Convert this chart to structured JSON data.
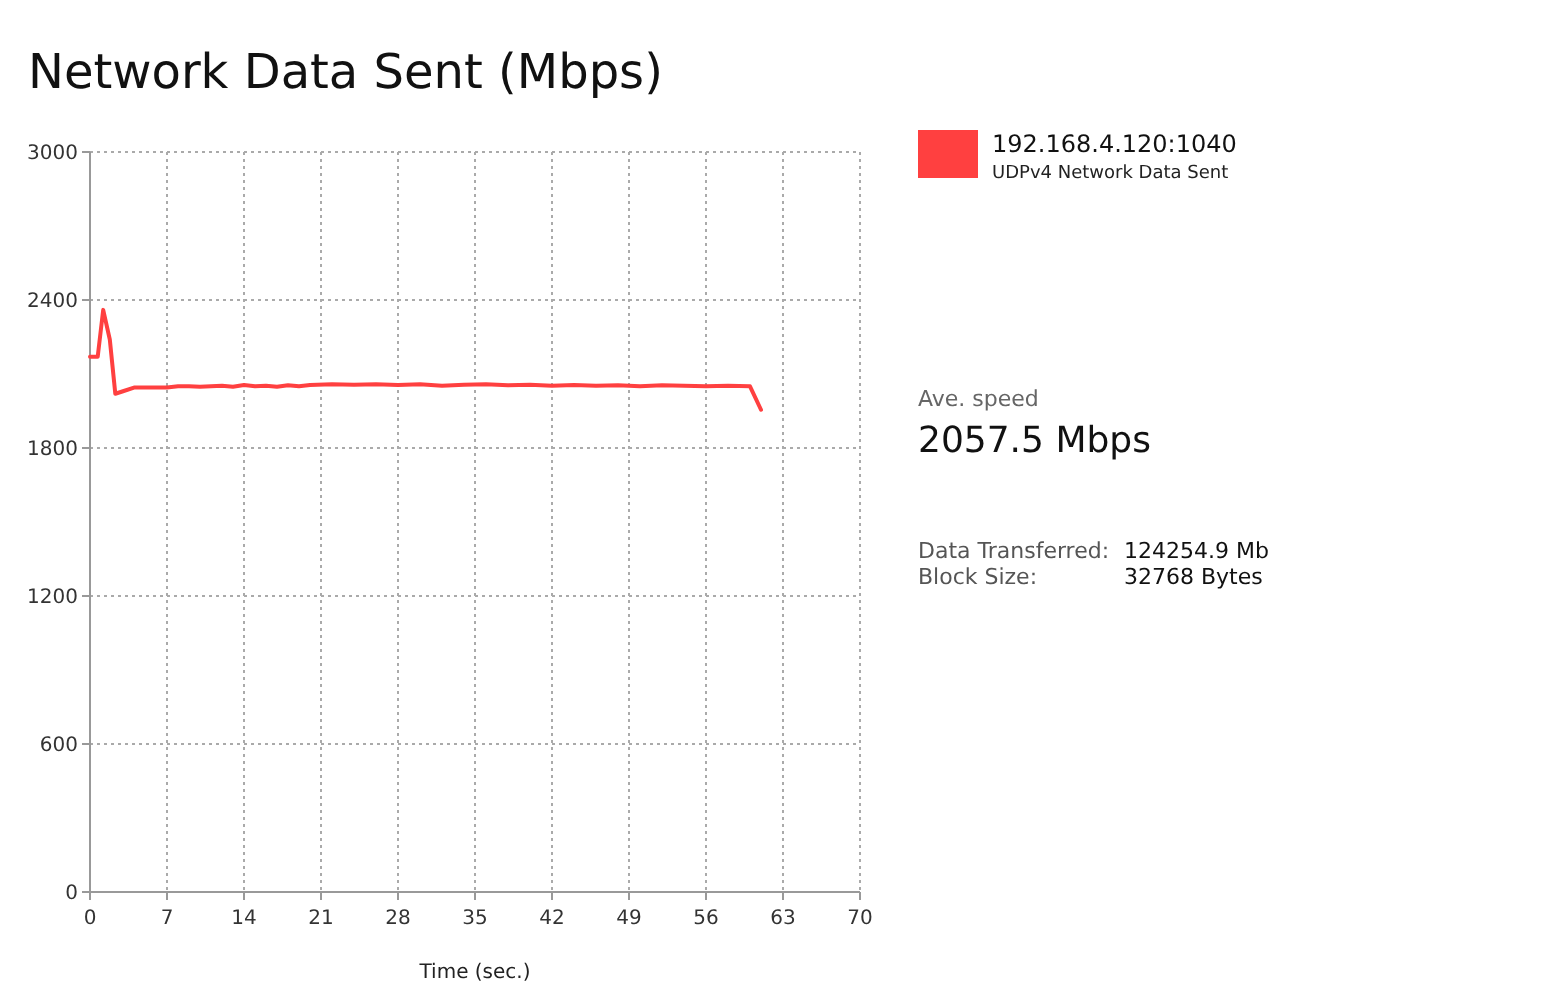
{
  "chart_data": {
    "type": "line",
    "title": "Network Data Sent (Mbps)",
    "xlabel": "Time (sec.)",
    "xlim": [
      0,
      70
    ],
    "xticks": [
      0,
      7,
      14,
      21,
      28,
      35,
      42,
      49,
      56,
      63,
      70
    ],
    "ylim": [
      0,
      3000
    ],
    "yticks": [
      0,
      600,
      1200,
      1800,
      2400,
      3000
    ],
    "grid": true,
    "legend": "right",
    "series": [
      {
        "name": "192.168.4.120:1040",
        "color": "#ff4040",
        "x": [
          0,
          0.7,
          1.2,
          1.8,
          2.3,
          3,
          4,
          5,
          6,
          7,
          8,
          9,
          10,
          11,
          12,
          13,
          14,
          15,
          16,
          17,
          18,
          19,
          20,
          22,
          24,
          26,
          28,
          30,
          32,
          34,
          36,
          38,
          40,
          42,
          44,
          46,
          48,
          50,
          52,
          54,
          56,
          58,
          60,
          61
        ],
        "values": [
          2170,
          2170,
          2360,
          2240,
          2020,
          2030,
          2045,
          2045,
          2045,
          2045,
          2050,
          2050,
          2048,
          2050,
          2052,
          2048,
          2055,
          2050,
          2052,
          2048,
          2054,
          2050,
          2055,
          2058,
          2056,
          2058,
          2055,
          2058,
          2052,
          2056,
          2058,
          2054,
          2056,
          2052,
          2055,
          2052,
          2054,
          2050,
          2054,
          2052,
          2050,
          2052,
          2050,
          1955
        ]
      }
    ],
    "annotations": [
      "UDPv4 Network Data Sent",
      "Ave. speed",
      "2057.5 Mbps",
      "Data Transferred:",
      "124254.9 Mb",
      "Block Size:",
      "32768 Bytes"
    ]
  }
}
